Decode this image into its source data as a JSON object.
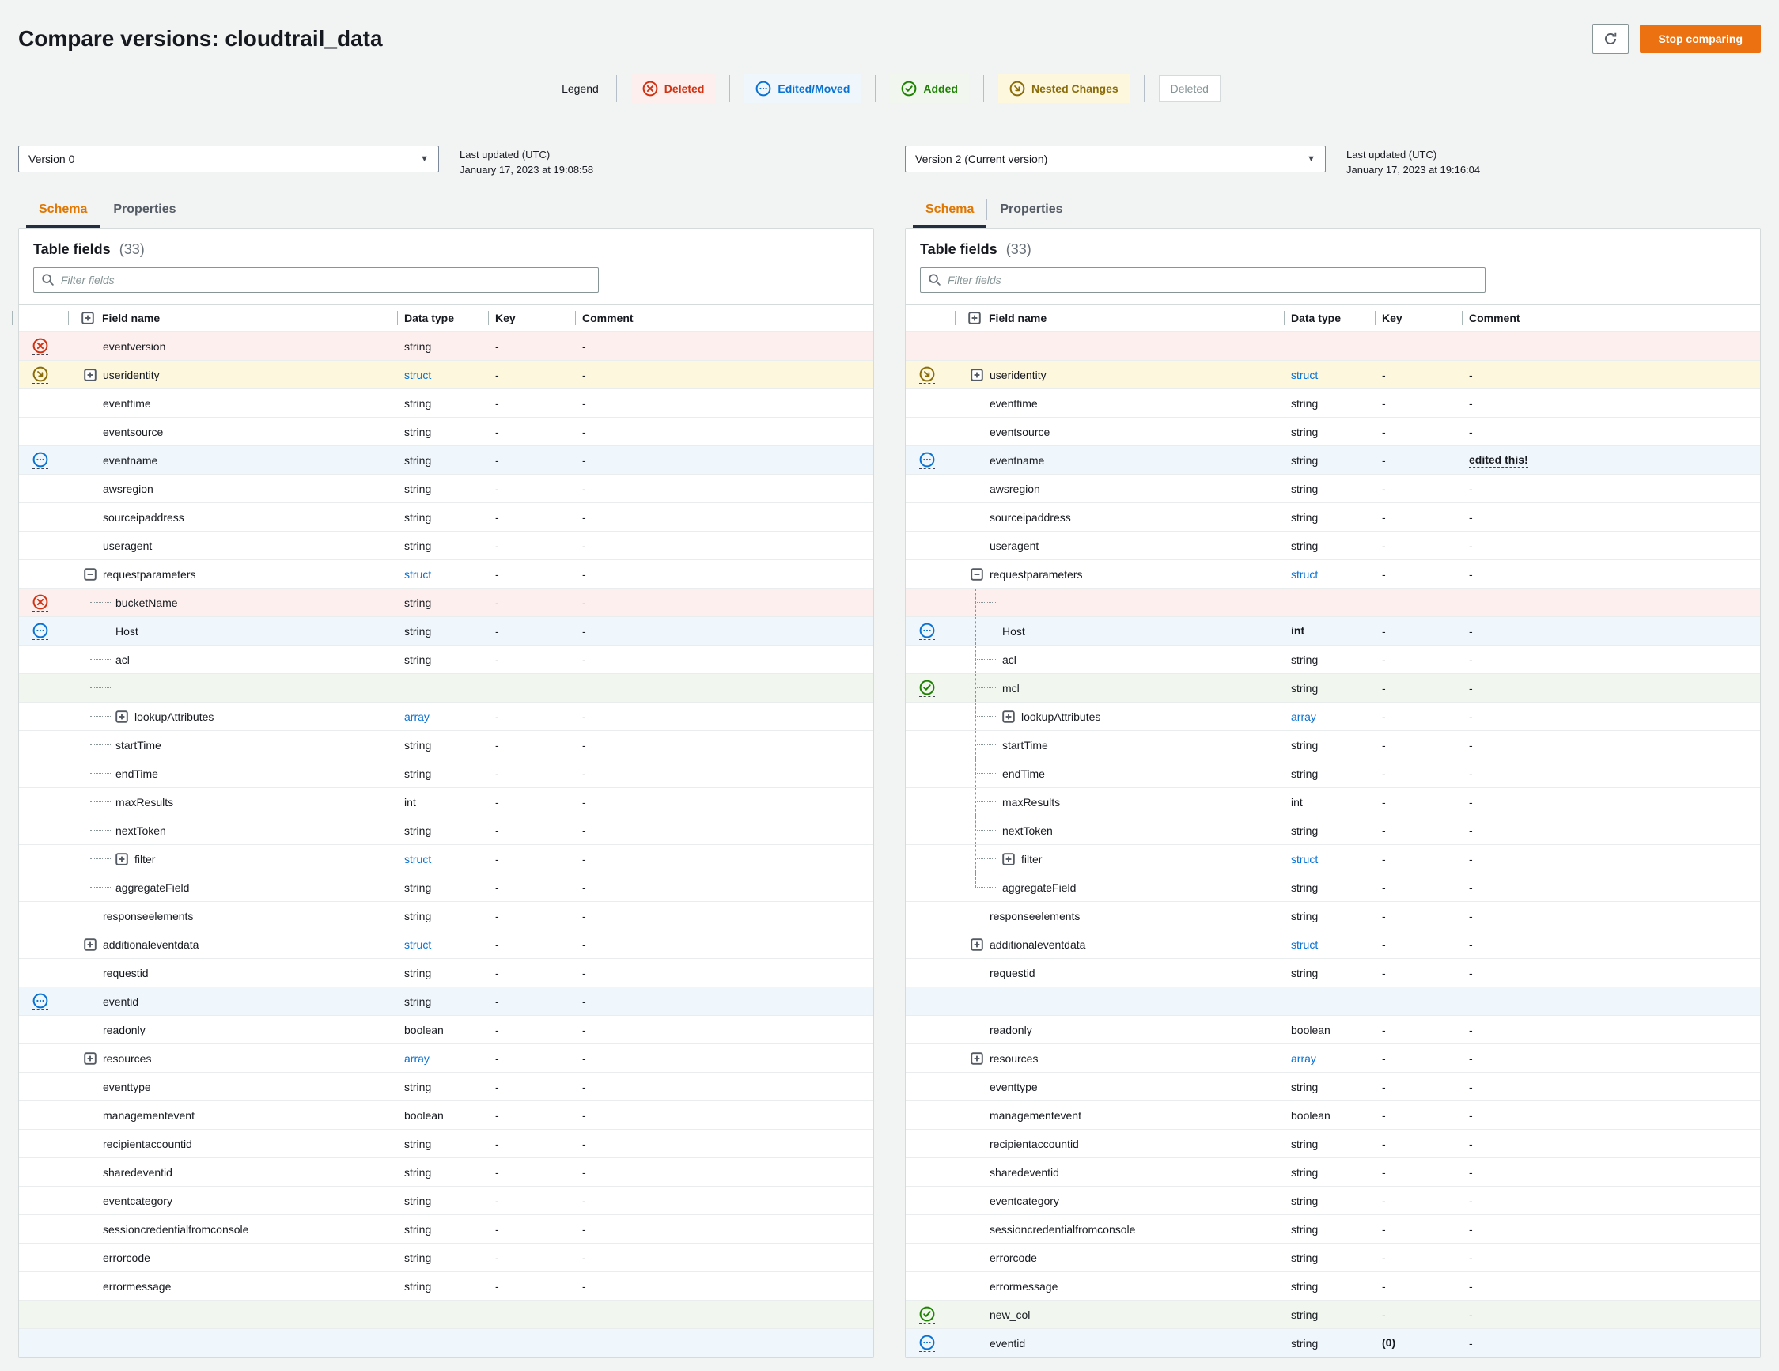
{
  "page": {
    "title": "Compare versions: cloudtrail_data"
  },
  "toolbar": {
    "stop_comparing_label": "Stop comparing"
  },
  "icons": {
    "refresh": "circular-arrow",
    "search": "magnifier",
    "dropdown": "down-caret",
    "deleted": "circled-x",
    "edited": "circled-ellipsis",
    "added": "circled-check",
    "nested": "circled-arrow-down-right"
  },
  "legend": {
    "label": "Legend",
    "items": [
      {
        "label": "Deleted",
        "kind": "deleted"
      },
      {
        "label": "Edited/Moved",
        "kind": "edited"
      },
      {
        "label": "Added",
        "kind": "added"
      },
      {
        "label": "Nested Changes",
        "kind": "nested"
      },
      {
        "label": "Deleted",
        "kind": "deleted-disabled"
      }
    ]
  },
  "panels": [
    {
      "version_label": "Version 0",
      "last_updated_label": "Last updated (UTC)",
      "last_updated_value": "January 17, 2023 at 19:08:58",
      "tabs": [
        {
          "label": "Schema",
          "active": true
        },
        {
          "label": "Properties",
          "active": false
        }
      ],
      "table_title": "Table fields",
      "table_count": "(33)",
      "filter_placeholder": "Filter fields",
      "columns": [
        "Field name",
        "Data type",
        "Key",
        "Comment"
      ],
      "rows": [
        {
          "name": "eventversion",
          "type": "string",
          "key": "-",
          "comment": "-",
          "status": "deleted"
        },
        {
          "name": "useridentity",
          "type": "struct",
          "key": "-",
          "comment": "-",
          "status": "nested",
          "expander": "plus"
        },
        {
          "name": "eventtime",
          "type": "string",
          "key": "-",
          "comment": "-"
        },
        {
          "name": "eventsource",
          "type": "string",
          "key": "-",
          "comment": "-"
        },
        {
          "name": "eventname",
          "type": "string",
          "key": "-",
          "comment": "-",
          "status": "edited"
        },
        {
          "name": "awsregion",
          "type": "string",
          "key": "-",
          "comment": "-"
        },
        {
          "name": "sourceipaddress",
          "type": "string",
          "key": "-",
          "comment": "-"
        },
        {
          "name": "useragent",
          "type": "string",
          "key": "-",
          "comment": "-"
        },
        {
          "name": "requestparameters",
          "type": "struct",
          "key": "-",
          "comment": "-",
          "expander": "minus"
        },
        {
          "name": "bucketName",
          "type": "string",
          "key": "-",
          "comment": "-",
          "status": "deleted",
          "depth": 1,
          "tree": "mid"
        },
        {
          "name": "Host",
          "type": "string",
          "key": "-",
          "comment": "-",
          "status": "edited",
          "depth": 1,
          "tree": "mid"
        },
        {
          "name": "acl",
          "type": "string",
          "key": "-",
          "comment": "-",
          "depth": 1,
          "tree": "mid"
        },
        {
          "placeholder": true,
          "bg": "added",
          "depth": 1,
          "tree": "mid"
        },
        {
          "name": "lookupAttributes",
          "type": "array",
          "key": "-",
          "comment": "-",
          "expander": "plus",
          "depth": 1,
          "tree": "mid"
        },
        {
          "name": "startTime",
          "type": "string",
          "key": "-",
          "comment": "-",
          "depth": 1,
          "tree": "mid"
        },
        {
          "name": "endTime",
          "type": "string",
          "key": "-",
          "comment": "-",
          "depth": 1,
          "tree": "mid"
        },
        {
          "name": "maxResults",
          "type": "int",
          "key": "-",
          "comment": "-",
          "depth": 1,
          "tree": "mid"
        },
        {
          "name": "nextToken",
          "type": "string",
          "key": "-",
          "comment": "-",
          "depth": 1,
          "tree": "mid"
        },
        {
          "name": "filter",
          "type": "struct",
          "key": "-",
          "comment": "-",
          "expander": "plus",
          "depth": 1,
          "tree": "mid"
        },
        {
          "name": "aggregateField",
          "type": "string",
          "key": "-",
          "comment": "-",
          "depth": 1,
          "tree": "last"
        },
        {
          "name": "responseelements",
          "type": "string",
          "key": "-",
          "comment": "-"
        },
        {
          "name": "additionaleventdata",
          "type": "struct",
          "key": "-",
          "comment": "-",
          "expander": "plus"
        },
        {
          "name": "requestid",
          "type": "string",
          "key": "-",
          "comment": "-"
        },
        {
          "name": "eventid",
          "type": "string",
          "key": "-",
          "comment": "-",
          "status": "edited"
        },
        {
          "name": "readonly",
          "type": "boolean",
          "key": "-",
          "comment": "-"
        },
        {
          "name": "resources",
          "type": "array",
          "key": "-",
          "comment": "-",
          "expander": "plus"
        },
        {
          "name": "eventtype",
          "type": "string",
          "key": "-",
          "comment": "-"
        },
        {
          "name": "managementevent",
          "type": "boolean",
          "key": "-",
          "comment": "-"
        },
        {
          "name": "recipientaccountid",
          "type": "string",
          "key": "-",
          "comment": "-"
        },
        {
          "name": "sharedeventid",
          "type": "string",
          "key": "-",
          "comment": "-"
        },
        {
          "name": "eventcategory",
          "type": "string",
          "key": "-",
          "comment": "-"
        },
        {
          "name": "sessioncredentialfromconsole",
          "type": "string",
          "key": "-",
          "comment": "-"
        },
        {
          "name": "errorcode",
          "type": "string",
          "key": "-",
          "comment": "-"
        },
        {
          "name": "errormessage",
          "type": "string",
          "key": "-",
          "comment": "-"
        },
        {
          "placeholder": true,
          "bg": "added"
        },
        {
          "placeholder": true,
          "bg": "edited"
        }
      ]
    },
    {
      "version_label": "Version 2 (Current version)",
      "last_updated_label": "Last updated (UTC)",
      "last_updated_value": "January 17, 2023 at 19:16:04",
      "tabs": [
        {
          "label": "Schema",
          "active": true
        },
        {
          "label": "Properties",
          "active": false
        }
      ],
      "table_title": "Table fields",
      "table_count": "(33)",
      "filter_placeholder": "Filter fields",
      "columns": [
        "Field name",
        "Data type",
        "Key",
        "Comment"
      ],
      "rows": [
        {
          "placeholder": true,
          "bg": "deleted"
        },
        {
          "name": "useridentity",
          "type": "struct",
          "key": "-",
          "comment": "-",
          "status": "nested",
          "expander": "plus"
        },
        {
          "name": "eventtime",
          "type": "string",
          "key": "-",
          "comment": "-"
        },
        {
          "name": "eventsource",
          "type": "string",
          "key": "-",
          "comment": "-"
        },
        {
          "name": "eventname",
          "type": "string",
          "key": "-",
          "comment": "edited this!",
          "status": "edited",
          "comment_emph": true
        },
        {
          "name": "awsregion",
          "type": "string",
          "key": "-",
          "comment": "-"
        },
        {
          "name": "sourceipaddress",
          "type": "string",
          "key": "-",
          "comment": "-"
        },
        {
          "name": "useragent",
          "type": "string",
          "key": "-",
          "comment": "-"
        },
        {
          "name": "requestparameters",
          "type": "struct",
          "key": "-",
          "comment": "-",
          "expander": "minus"
        },
        {
          "placeholder": true,
          "bg": "deleted",
          "depth": 1,
          "tree": "mid"
        },
        {
          "name": "Host",
          "type": "int",
          "key": "-",
          "comment": "-",
          "status": "edited",
          "depth": 1,
          "tree": "mid",
          "type_emph": true
        },
        {
          "name": "acl",
          "type": "string",
          "key": "-",
          "comment": "-",
          "depth": 1,
          "tree": "mid"
        },
        {
          "name": "mcl",
          "type": "string",
          "key": "-",
          "comment": "-",
          "status": "added",
          "depth": 1,
          "tree": "mid"
        },
        {
          "name": "lookupAttributes",
          "type": "array",
          "key": "-",
          "comment": "-",
          "expander": "plus",
          "depth": 1,
          "tree": "mid"
        },
        {
          "name": "startTime",
          "type": "string",
          "key": "-",
          "comment": "-",
          "depth": 1,
          "tree": "mid"
        },
        {
          "name": "endTime",
          "type": "string",
          "key": "-",
          "comment": "-",
          "depth": 1,
          "tree": "mid"
        },
        {
          "name": "maxResults",
          "type": "int",
          "key": "-",
          "comment": "-",
          "depth": 1,
          "tree": "mid"
        },
        {
          "name": "nextToken",
          "type": "string",
          "key": "-",
          "comment": "-",
          "depth": 1,
          "tree": "mid"
        },
        {
          "name": "filter",
          "type": "struct",
          "key": "-",
          "comment": "-",
          "expander": "plus",
          "depth": 1,
          "tree": "mid"
        },
        {
          "name": "aggregateField",
          "type": "string",
          "key": "-",
          "comment": "-",
          "depth": 1,
          "tree": "last"
        },
        {
          "name": "responseelements",
          "type": "string",
          "key": "-",
          "comment": "-"
        },
        {
          "name": "additionaleventdata",
          "type": "struct",
          "key": "-",
          "comment": "-",
          "expander": "plus"
        },
        {
          "name": "requestid",
          "type": "string",
          "key": "-",
          "comment": "-"
        },
        {
          "placeholder": true,
          "bg": "edited"
        },
        {
          "name": "readonly",
          "type": "boolean",
          "key": "-",
          "comment": "-"
        },
        {
          "name": "resources",
          "type": "array",
          "key": "-",
          "comment": "-",
          "expander": "plus"
        },
        {
          "name": "eventtype",
          "type": "string",
          "key": "-",
          "comment": "-"
        },
        {
          "name": "managementevent",
          "type": "boolean",
          "key": "-",
          "comment": "-"
        },
        {
          "name": "recipientaccountid",
          "type": "string",
          "key": "-",
          "comment": "-"
        },
        {
          "name": "sharedeventid",
          "type": "string",
          "key": "-",
          "comment": "-"
        },
        {
          "name": "eventcategory",
          "type": "string",
          "key": "-",
          "comment": "-"
        },
        {
          "name": "sessioncredentialfromconsole",
          "type": "string",
          "key": "-",
          "comment": "-"
        },
        {
          "name": "errorcode",
          "type": "string",
          "key": "-",
          "comment": "-"
        },
        {
          "name": "errormessage",
          "type": "string",
          "key": "-",
          "comment": "-"
        },
        {
          "name": "new_col",
          "type": "string",
          "key": "-",
          "comment": "-",
          "status": "added"
        },
        {
          "name": "eventid",
          "type": "string",
          "key": "(0)",
          "comment": "-",
          "status": "edited",
          "key_emph": true
        }
      ]
    }
  ],
  "colors": {
    "deleted": "#d13212",
    "edited": "#0972d3",
    "added": "#1d8102",
    "nested": "#8a6c0a",
    "deleted_bg": "#fcefed",
    "edited_bg": "#f0f7fc",
    "added_bg": "#f1f7ee",
    "nested_bg": "#fcf7dd",
    "primary_button": "#ec7211",
    "active_tab": "#e07700",
    "type_link": "#0972d3"
  }
}
